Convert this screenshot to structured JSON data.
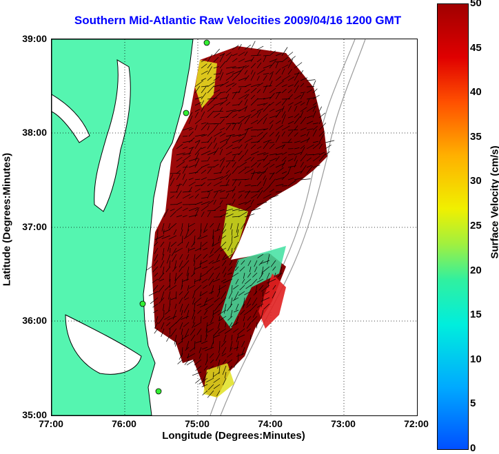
{
  "title": "Southern Mid-Atlantic Raw Velocities 2009/04/16 1200 GMT",
  "map": {
    "x_ticks": [
      "77:00",
      "76:00",
      "75:00",
      "74:00",
      "73:00",
      "72:00"
    ],
    "y_ticks": [
      "39:00",
      "38:00",
      "37:00",
      "36:00",
      "35:00"
    ],
    "xlabel": "Longitude (Degrees:Minutes)",
    "ylabel": "Latitude (Degrees:Minutes)",
    "land_color": "#55f5b0",
    "grid": "dotted"
  },
  "colorbar": {
    "label": "Surface Velocity (cm/s)",
    "ticks": [
      "50",
      "45",
      "40",
      "35",
      "30",
      "25",
      "20",
      "15",
      "10",
      "5",
      "0"
    ],
    "range": [
      0,
      50
    ],
    "colormap": "jet"
  },
  "chart_data": {
    "type": "heatmap",
    "title": "Southern Mid-Atlantic Raw Velocities 2009/04/16 1200 GMT",
    "xlabel": "Longitude (Degrees:Minutes)",
    "ylabel": "Latitude (Degrees:Minutes)",
    "xlim": [
      -77,
      -72
    ],
    "ylim": [
      35,
      39
    ],
    "colorbar_label": "Surface Velocity (cm/s)",
    "clim": [
      0,
      50
    ],
    "grid": true
  }
}
